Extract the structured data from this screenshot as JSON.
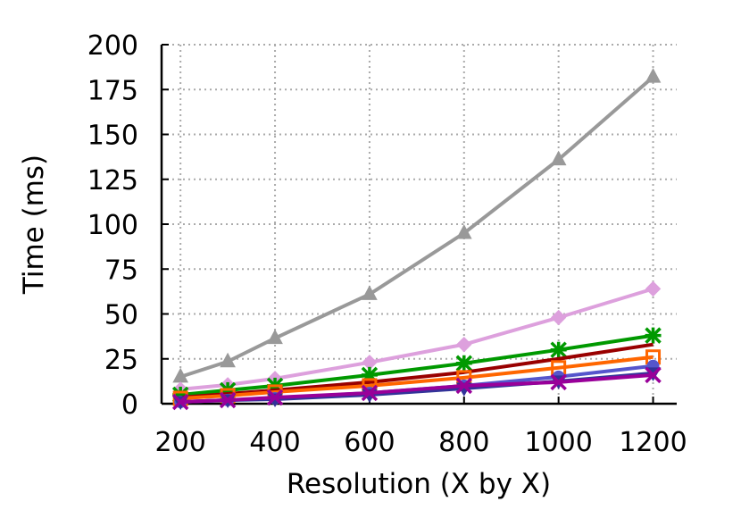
{
  "chart_data": {
    "type": "line",
    "title": "",
    "xlabel": "Resolution (X by X)",
    "ylabel": "Time (ms)",
    "xlim": [
      160,
      1250
    ],
    "ylim": [
      0,
      200
    ],
    "x_ticks": [
      200,
      400,
      600,
      800,
      1000,
      1200
    ],
    "y_ticks": [
      0,
      25,
      50,
      75,
      100,
      125,
      150,
      175,
      200
    ],
    "grid": true,
    "x": [
      200,
      300,
      400,
      600,
      800,
      1000,
      1200
    ],
    "series": [
      {
        "color": "#999999",
        "marker": "triangle",
        "values": [
          15,
          23.5,
          36.5,
          61,
          95,
          136,
          182
        ]
      },
      {
        "color": "#dda0dd",
        "marker": "diamond",
        "values": [
          8,
          10.5,
          14,
          23,
          33,
          48,
          64
        ]
      },
      {
        "color": "#009900",
        "marker": "asterisk",
        "values": [
          5,
          7.5,
          10,
          16,
          22.5,
          30,
          38
        ]
      },
      {
        "color": "#990000",
        "marker": "none",
        "values": [
          3.5,
          5.5,
          7.5,
          12,
          17.5,
          25,
          33
        ]
      },
      {
        "color": "#ff6600",
        "marker": "square",
        "values": [
          3,
          4.5,
          6.5,
          10,
          14.5,
          20,
          26
        ]
      },
      {
        "color": "#5555cc",
        "marker": "circle",
        "values": [
          1,
          2,
          3,
          6,
          10,
          15,
          21
        ]
      },
      {
        "color": "#333399",
        "marker": "triangle-down",
        "values": [
          1,
          2,
          2.5,
          5,
          8.5,
          12.5,
          17
        ]
      },
      {
        "color": "#990099",
        "marker": "x",
        "values": [
          1,
          2,
          3.5,
          6,
          10,
          12,
          16
        ]
      }
    ]
  }
}
